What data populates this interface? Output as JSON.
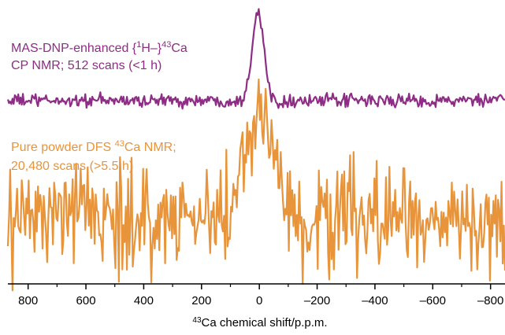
{
  "chart_data": {
    "type": "line",
    "title": "",
    "xlabel_sup": "43",
    "xlabel_main": "Ca chemical shift/p.p.m.",
    "xlim": [
      870,
      -850
    ],
    "x_reversed": true,
    "x_ticks": [
      800,
      600,
      400,
      200,
      0,
      -200,
      -400,
      -600,
      -800
    ],
    "x_tick_labels": [
      "800",
      "600",
      "400",
      "200",
      "0",
      "–200",
      "–400",
      "–600",
      "–800"
    ],
    "y_axis_shown": false,
    "grid": false,
    "legend": "none",
    "series": [
      {
        "key": "dnp",
        "color": "#8e2d86",
        "baseline": 0.0,
        "peak_center": 5,
        "peak_height": 1.0,
        "peak_width": 20,
        "noise": 0.045,
        "label_lines": [
          {
            "parts": [
              {
                "text": "MAS-DNP-enhanced {"
              },
              {
                "text": "1",
                "sup": true
              },
              {
                "text": "H–}"
              },
              {
                "text": "43",
                "sup": true
              },
              {
                "text": "Ca"
              }
            ]
          },
          {
            "parts": [
              {
                "text": "CP NMR; 512 scans (<1 h)"
              }
            ]
          }
        ]
      },
      {
        "key": "dfs",
        "color": "#e8943a",
        "baseline": 0.0,
        "peak_center": 5,
        "peak_height": 0.42,
        "peak_width": 55,
        "noise": 0.14,
        "label_lines": [
          {
            "parts": [
              {
                "text": "Pure powder DFS "
              },
              {
                "text": "43",
                "sup": true
              },
              {
                "text": "Ca NMR;"
              }
            ]
          },
          {
            "parts": [
              {
                "text": "20,480 scans (>5.5 h)"
              }
            ]
          }
        ]
      }
    ]
  }
}
